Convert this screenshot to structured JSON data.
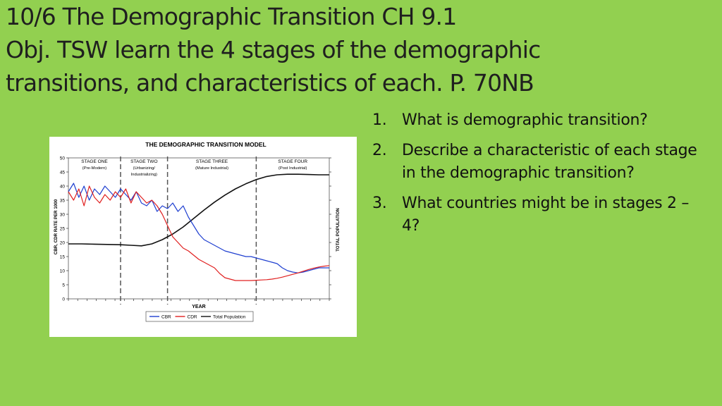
{
  "slide": {
    "title_lines": [
      "10/6 The Demographic Transition CH 9.1",
      "Obj. TSW learn the 4 stages of the demographic",
      "transitions, and characteristics of each. P. 70NB"
    ],
    "questions": [
      {
        "num": "1.",
        "text": "What is demographic transition?"
      },
      {
        "num": "2.",
        "text": "Describe a characteristic of each stage in the demographic transition?"
      },
      {
        "num": "3.",
        "text": "What countries might be in stages 2 – 4?"
      }
    ],
    "background_color": "#92d050"
  },
  "chart_data": {
    "type": "line",
    "title": "THE DEMOGRAPHIC TRANSITION MODEL",
    "xlabel": "YEAR",
    "ylabel": "CBR, CDR RATE PER 1000",
    "y2label": "TOTAL POPULATION",
    "ylim": [
      0,
      50
    ],
    "yticks": [
      0,
      5,
      10,
      15,
      20,
      25,
      30,
      35,
      40,
      45,
      50
    ],
    "stages": [
      {
        "name": "STAGE ONE",
        "sub": [
          "(Pre-Modern)"
        ]
      },
      {
        "name": "STAGE TWO",
        "sub": [
          "(Urbanizing/",
          "Industrializing)"
        ]
      },
      {
        "name": "STAGE THREE",
        "sub": [
          "(Mature Industrial)"
        ]
      },
      {
        "name": "STAGE FOUR",
        "sub": [
          "(Post Industrial)"
        ]
      }
    ],
    "legend_position": "bottom",
    "series": [
      {
        "name": "CBR",
        "color": "#1f3fd0",
        "x": [
          0,
          2,
          4,
          6,
          8,
          10,
          12,
          14,
          16,
          18,
          20,
          22,
          24,
          26,
          28,
          30,
          32,
          34,
          36,
          38,
          40,
          42,
          44,
          46,
          48,
          50,
          52,
          54,
          56,
          58,
          60,
          62,
          64,
          66,
          68,
          70,
          72,
          74,
          76,
          78,
          80,
          82,
          84,
          86,
          88,
          90,
          92,
          94,
          96,
          98,
          100
        ],
        "y": [
          38,
          41,
          36,
          40,
          35,
          39,
          37,
          40,
          38,
          36,
          39,
          37,
          35,
          38,
          34,
          33,
          35,
          31,
          33,
          32,
          34,
          31,
          33,
          29,
          26,
          23,
          21,
          20,
          19,
          18,
          17,
          16.5,
          16,
          15.5,
          15,
          15,
          14.5,
          14,
          13.5,
          13,
          12.5,
          11,
          10,
          9.5,
          9.2,
          9.5,
          10,
          10.5,
          11,
          11,
          11
        ]
      },
      {
        "name": "CDR",
        "color": "#e02020",
        "x": [
          0,
          2,
          4,
          6,
          8,
          10,
          12,
          14,
          16,
          18,
          20,
          22,
          24,
          26,
          28,
          30,
          32,
          34,
          36,
          38,
          40,
          42,
          44,
          46,
          48,
          50,
          52,
          54,
          56,
          58,
          60,
          62,
          64,
          66,
          68,
          70,
          72,
          74,
          76,
          78,
          80,
          82,
          84,
          86,
          88,
          90,
          92,
          94,
          96,
          98,
          100
        ],
        "y": [
          38,
          35,
          39,
          33,
          40,
          36,
          34,
          37,
          35,
          38,
          36,
          39,
          34,
          38,
          36,
          34,
          35,
          33,
          30,
          26,
          22,
          20,
          18,
          17,
          15.5,
          14,
          13,
          12,
          11,
          9,
          7.5,
          7,
          6.5,
          6.5,
          6.5,
          6.5,
          6.6,
          6.7,
          6.8,
          7,
          7.3,
          7.7,
          8.2,
          8.7,
          9.2,
          9.8,
          10.4,
          10.9,
          11.3,
          11.6,
          11.8
        ]
      },
      {
        "name": "Total Population",
        "color": "#111111",
        "x": [
          0,
          5,
          10,
          15,
          20,
          24,
          28,
          32,
          36,
          40,
          44,
          48,
          52,
          56,
          60,
          64,
          68,
          72,
          76,
          80,
          84,
          88,
          92,
          96,
          100
        ],
        "y": [
          19.5,
          19.5,
          19.4,
          19.3,
          19.2,
          19,
          18.8,
          19.5,
          21,
          23,
          25.5,
          28.5,
          31.5,
          34.3,
          36.8,
          39,
          40.8,
          42.3,
          43.4,
          44,
          44.2,
          44.2,
          44.1,
          44,
          44
        ]
      }
    ],
    "x_stage_boundaries": [
      20,
      38,
      72
    ]
  }
}
